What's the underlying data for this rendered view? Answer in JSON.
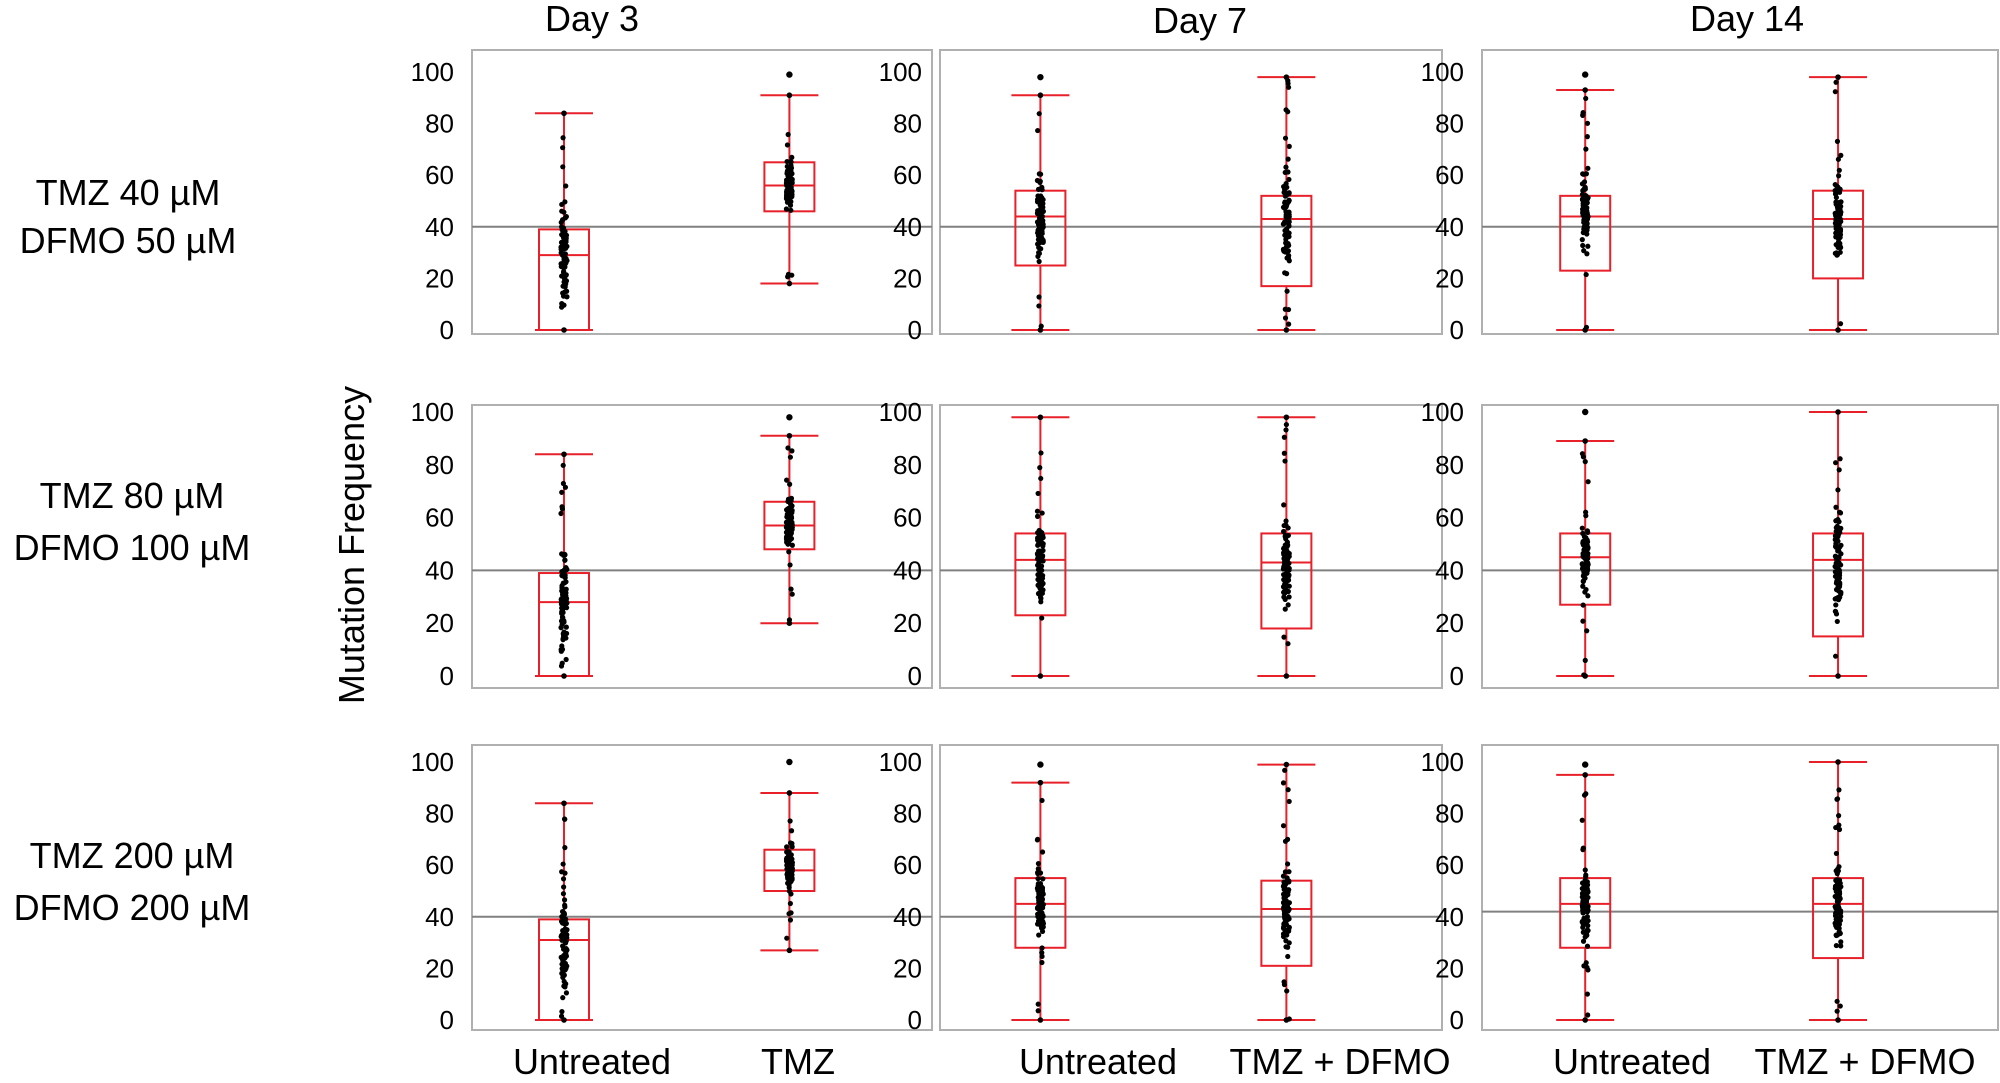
{
  "figure": {
    "ylabel": "Mutation Frequency",
    "col_titles": [
      "Day 3",
      "Day 7",
      "Day 14"
    ],
    "row_labels": [
      [
        "TMZ 40 µM",
        "DFMO 50 µM"
      ],
      [
        "TMZ 80 µM",
        "DFMO 100 µM"
      ],
      [
        "TMZ 200 µM",
        "DFMO 200 µM"
      ]
    ],
    "category_labels": [
      [
        "Untreated",
        "TMZ"
      ],
      [
        "Untreated",
        "TMZ + DFMO"
      ],
      [
        "Untreated",
        "TMZ + DFMO"
      ]
    ]
  },
  "colors": {
    "box": "#e8202a",
    "points": "#000000",
    "reference_line": "#808080",
    "frame": "#b0b0b0"
  },
  "chart_data": [
    {
      "type": "box",
      "row": 0,
      "col": 0,
      "ylim": [
        0,
        100
      ],
      "yticks": [
        0,
        20,
        40,
        60,
        80,
        100
      ],
      "reference_line": 40,
      "categories": [
        "Untreated",
        "TMZ"
      ],
      "boxes": [
        {
          "min": 0,
          "q1": 0,
          "median": 29,
          "q3": 39,
          "max": 84,
          "outliers": []
        },
        {
          "min": 18,
          "q1": 46,
          "median": 56,
          "q3": 65,
          "max": 91,
          "outliers": [
            99
          ]
        }
      ]
    },
    {
      "type": "box",
      "row": 0,
      "col": 1,
      "ylim": [
        0,
        100
      ],
      "yticks": [
        0,
        20,
        40,
        60,
        80,
        100
      ],
      "reference_line": 40,
      "categories": [
        "Untreated",
        "TMZ + DFMO"
      ],
      "boxes": [
        {
          "min": 0,
          "q1": 25,
          "median": 44,
          "q3": 54,
          "max": 91,
          "outliers": [
            98
          ]
        },
        {
          "min": 0,
          "q1": 17,
          "median": 43,
          "q3": 52,
          "max": 98,
          "outliers": []
        }
      ]
    },
    {
      "type": "box",
      "row": 0,
      "col": 2,
      "ylim": [
        0,
        100
      ],
      "yticks": [
        0,
        20,
        40,
        60,
        80,
        100
      ],
      "reference_line": 40,
      "categories": [
        "Untreated",
        "TMZ + DFMO"
      ],
      "boxes": [
        {
          "min": 0,
          "q1": 23,
          "median": 44,
          "q3": 52,
          "max": 93,
          "outliers": [
            99
          ]
        },
        {
          "min": 0,
          "q1": 20,
          "median": 43,
          "q3": 54,
          "max": 98,
          "outliers": []
        }
      ]
    },
    {
      "type": "box",
      "row": 1,
      "col": 0,
      "ylim": [
        0,
        100
      ],
      "yticks": [
        0,
        20,
        40,
        60,
        80,
        100
      ],
      "reference_line": 40,
      "categories": [
        "Untreated",
        "TMZ"
      ],
      "boxes": [
        {
          "min": 0,
          "q1": 0,
          "median": 28,
          "q3": 39,
          "max": 84,
          "outliers": []
        },
        {
          "min": 20,
          "q1": 48,
          "median": 57,
          "q3": 66,
          "max": 91,
          "outliers": [
            98
          ]
        }
      ]
    },
    {
      "type": "box",
      "row": 1,
      "col": 1,
      "ylim": [
        0,
        100
      ],
      "yticks": [
        0,
        20,
        40,
        60,
        80,
        100
      ],
      "reference_line": 40,
      "categories": [
        "Untreated",
        "TMZ + DFMO"
      ],
      "boxes": [
        {
          "min": 0,
          "q1": 23,
          "median": 44,
          "q3": 54,
          "max": 98,
          "outliers": []
        },
        {
          "min": 0,
          "q1": 18,
          "median": 43,
          "q3": 54,
          "max": 98,
          "outliers": []
        }
      ]
    },
    {
      "type": "box",
      "row": 1,
      "col": 2,
      "ylim": [
        0,
        100
      ],
      "yticks": [
        0,
        20,
        40,
        60,
        80,
        100
      ],
      "reference_line": 40,
      "categories": [
        "Untreated",
        "TMZ + DFMO"
      ],
      "boxes": [
        {
          "min": 0,
          "q1": 27,
          "median": 45,
          "q3": 54,
          "max": 89,
          "outliers": [
            100
          ]
        },
        {
          "min": 0,
          "q1": 15,
          "median": 44,
          "q3": 54,
          "max": 100,
          "outliers": []
        }
      ]
    },
    {
      "type": "box",
      "row": 2,
      "col": 0,
      "ylim": [
        0,
        100
      ],
      "yticks": [
        0,
        20,
        40,
        60,
        80,
        100
      ],
      "reference_line": 40,
      "categories": [
        "Untreated",
        "TMZ"
      ],
      "boxes": [
        {
          "min": 0,
          "q1": 0,
          "median": 31,
          "q3": 39,
          "max": 84,
          "outliers": []
        },
        {
          "min": 27,
          "q1": 50,
          "median": 58,
          "q3": 66,
          "max": 88,
          "outliers": [
            100
          ]
        }
      ]
    },
    {
      "type": "box",
      "row": 2,
      "col": 1,
      "ylim": [
        0,
        100
      ],
      "yticks": [
        0,
        20,
        40,
        60,
        80,
        100
      ],
      "reference_line": 40,
      "categories": [
        "Untreated",
        "TMZ + DFMO"
      ],
      "boxes": [
        {
          "min": 0,
          "q1": 28,
          "median": 45,
          "q3": 55,
          "max": 92,
          "outliers": [
            99
          ]
        },
        {
          "min": 0,
          "q1": 21,
          "median": 43,
          "q3": 54,
          "max": 99,
          "outliers": []
        }
      ]
    },
    {
      "type": "box",
      "row": 2,
      "col": 2,
      "ylim": [
        0,
        100
      ],
      "yticks": [
        0,
        20,
        40,
        60,
        80,
        100
      ],
      "reference_line": 42,
      "categories": [
        "Untreated",
        "TMZ + DFMO"
      ],
      "boxes": [
        {
          "min": 0,
          "q1": 28,
          "median": 45,
          "q3": 55,
          "max": 95,
          "outliers": [
            99
          ]
        },
        {
          "min": 0,
          "q1": 24,
          "median": 45,
          "q3": 55,
          "max": 100,
          "outliers": []
        }
      ]
    }
  ]
}
